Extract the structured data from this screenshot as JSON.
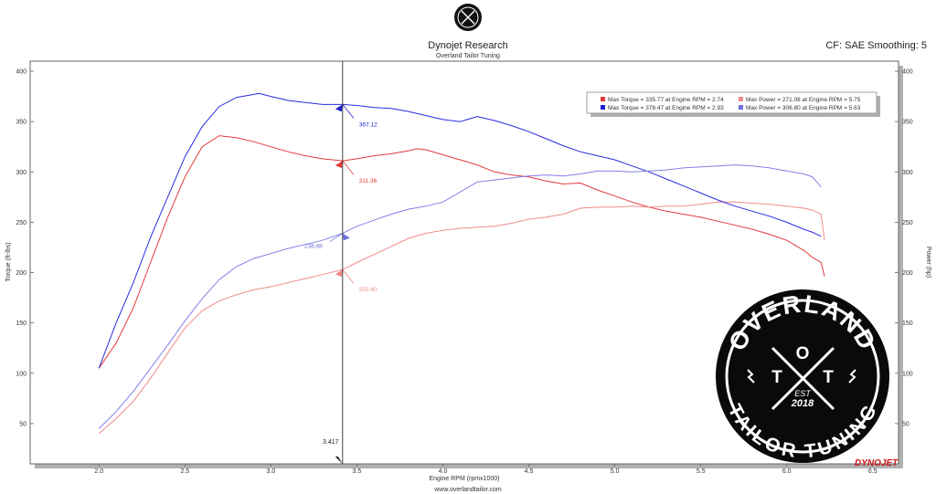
{
  "header": {
    "title": "Dynojet Research",
    "subtitle": "Overland Tailor Tuning",
    "cf_info": "CF: SAE Smoothing: 5"
  },
  "footer": {
    "url": "www.overlandtailor.com"
  },
  "branding": {
    "badge_text_top": "OVERLAND",
    "badge_text_bottom": "TAILOR TUNING",
    "badge_letter_left": "T",
    "badge_letter_center": "O",
    "badge_letter_right": "T",
    "badge_est": "EST",
    "badge_year": "2018",
    "dynojet_logo": "DYNOJET"
  },
  "legend": [
    {
      "label": "Max Torque = 335.77 at Engine RPM = 2.74",
      "color": "#e23a3a"
    },
    {
      "label": "Max Power = 271.08 at Engine RPM = 5.75",
      "color": "#f08a8a"
    },
    {
      "label": "Max Torque = 378.47 at Engine RPM = 2.93",
      "color": "#2020d0"
    },
    {
      "label": "Max Power = 306.80 at Engine RPM = 5.63",
      "color": "#7070e0"
    }
  ],
  "chart_data": {
    "type": "line",
    "xlabel": "Engine RPM (rpmx1000)",
    "ylabel": "Torque (ft-lbs)",
    "y2label": "Power (hp)",
    "xlim": [
      1.6,
      6.65
    ],
    "ylim": [
      10,
      410
    ],
    "xticks": [
      "2.0",
      "2.5",
      "3.0",
      "3.5",
      "4.0",
      "4.5",
      "5.0",
      "5.5",
      "6.0",
      "6.5"
    ],
    "yticks": [
      "50",
      "100",
      "150",
      "200",
      "250",
      "300",
      "350",
      "400"
    ],
    "cursor": {
      "x": 3.417,
      "label": "3.417"
    },
    "series": [
      {
        "color": "#e23a3a",
        "x": [
          2.0,
          2.1,
          2.2,
          2.3,
          2.4,
          2.5,
          2.6,
          2.7,
          2.8,
          2.9,
          3.0,
          3.1,
          3.2,
          3.3,
          3.417,
          3.5,
          3.6,
          3.7,
          3.8,
          3.85,
          3.9,
          4.0,
          4.1,
          4.2,
          4.3,
          4.4,
          4.5,
          4.6,
          4.7,
          4.8,
          4.9,
          5.0,
          5.1,
          5.2,
          5.3,
          5.4,
          5.5,
          5.6,
          5.7,
          5.8,
          5.9,
          6.0,
          6.1,
          6.15,
          6.2,
          6.22
        ],
        "y": [
          105,
          130,
          165,
          210,
          255,
          295,
          325,
          336,
          334,
          330,
          325,
          320,
          316,
          313,
          311,
          313,
          316,
          318,
          321,
          323,
          322,
          317,
          312,
          307,
          300,
          297,
          295,
          291,
          288,
          289,
          282,
          276,
          270,
          265,
          261,
          258,
          255,
          251,
          247,
          243,
          238,
          232,
          222,
          215,
          210,
          196
        ]
      },
      {
        "color": "#f08a8a",
        "x": [
          2.0,
          2.1,
          2.2,
          2.3,
          2.4,
          2.5,
          2.6,
          2.7,
          2.8,
          2.9,
          3.0,
          3.1,
          3.2,
          3.3,
          3.417,
          3.5,
          3.6,
          3.7,
          3.8,
          3.9,
          4.0,
          4.1,
          4.2,
          4.3,
          4.4,
          4.5,
          4.6,
          4.7,
          4.8,
          4.9,
          5.0,
          5.1,
          5.2,
          5.3,
          5.4,
          5.5,
          5.6,
          5.7,
          5.8,
          5.9,
          6.0,
          6.1,
          6.15,
          6.2,
          6.22
        ],
        "y": [
          40,
          55,
          72,
          95,
          120,
          145,
          162,
          172,
          178,
          183,
          186,
          190,
          194,
          198,
          203,
          210,
          218,
          226,
          234,
          239,
          242,
          244,
          245,
          246,
          249,
          253,
          255,
          258,
          264,
          265,
          265,
          266,
          265,
          266,
          266,
          268,
          270,
          270,
          269,
          268,
          266,
          264,
          262,
          258,
          232
        ]
      },
      {
        "color": "#2a2ae0",
        "x": [
          2.0,
          2.1,
          2.2,
          2.3,
          2.4,
          2.5,
          2.6,
          2.7,
          2.8,
          2.9,
          2.93,
          3.0,
          3.1,
          3.2,
          3.3,
          3.417,
          3.5,
          3.6,
          3.7,
          3.8,
          3.9,
          4.0,
          4.1,
          4.2,
          4.3,
          4.4,
          4.5,
          4.6,
          4.7,
          4.8,
          4.9,
          5.0,
          5.1,
          5.2,
          5.3,
          5.4,
          5.5,
          5.6,
          5.7,
          5.8,
          5.9,
          6.0,
          6.1,
          6.15,
          6.2
        ],
        "y": [
          105,
          150,
          190,
          235,
          275,
          315,
          345,
          365,
          374,
          377,
          378,
          375,
          371,
          369,
          367,
          367,
          366,
          364,
          363,
          360,
          356,
          352,
          350,
          355,
          351,
          346,
          340,
          333,
          326,
          320,
          316,
          312,
          306,
          300,
          293,
          286,
          279,
          272,
          266,
          261,
          256,
          250,
          243,
          240,
          236
        ]
      },
      {
        "color": "#8080e8",
        "x": [
          2.0,
          2.1,
          2.2,
          2.3,
          2.4,
          2.5,
          2.6,
          2.7,
          2.8,
          2.9,
          3.0,
          3.1,
          3.2,
          3.3,
          3.417,
          3.5,
          3.6,
          3.7,
          3.8,
          3.9,
          4.0,
          4.1,
          4.2,
          4.3,
          4.4,
          4.5,
          4.6,
          4.7,
          4.8,
          4.9,
          5.0,
          5.1,
          5.2,
          5.3,
          5.4,
          5.5,
          5.6,
          5.7,
          5.8,
          5.9,
          6.0,
          6.1,
          6.15,
          6.2
        ],
        "y": [
          45,
          62,
          82,
          105,
          128,
          152,
          174,
          193,
          206,
          214,
          219,
          224,
          228,
          232,
          239,
          246,
          252,
          258,
          263,
          266,
          270,
          280,
          290,
          292,
          294,
          296,
          297,
          296,
          298,
          301,
          301,
          300,
          301,
          302,
          304,
          305,
          306,
          307,
          306,
          304,
          301,
          298,
          295,
          285
        ]
      }
    ],
    "annotations": [
      {
        "x": 3.417,
        "y": 367,
        "label": "367.12",
        "color": "#2020d0",
        "side": "below-right"
      },
      {
        "x": 3.417,
        "y": 311,
        "label": "311.36",
        "color": "#e23a3a",
        "side": "below-right"
      },
      {
        "x": 3.417,
        "y": 239,
        "label": "238.88",
        "color": "#7070e0",
        "side": "below-left"
      },
      {
        "x": 3.417,
        "y": 203,
        "label": "202.60",
        "color": "#f08a8a",
        "side": "below-right"
      }
    ]
  }
}
